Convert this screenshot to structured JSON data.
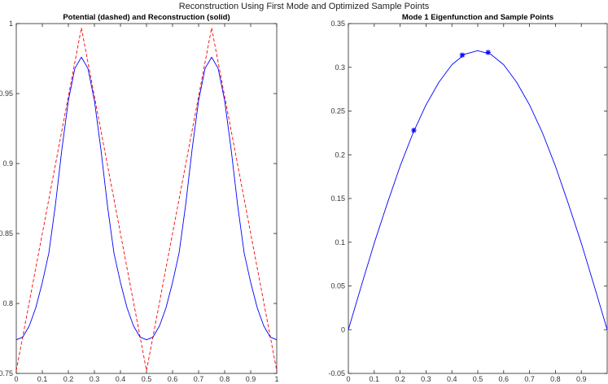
{
  "figure": {
    "title": "Reconstruction Using First Mode and Optimized Sample Points"
  },
  "chart_data": [
    {
      "type": "line",
      "title": "Potential (dashed) and Reconstruction (solid)",
      "xlabel": "",
      "ylabel": "",
      "xlim": [
        0,
        1
      ],
      "ylim": [
        0.75,
        1
      ],
      "xticks": [
        0,
        0.1,
        0.2,
        0.3,
        0.4,
        0.5,
        0.6,
        0.7,
        0.8,
        0.9,
        1
      ],
      "xticklabels": [
        "0",
        "0.1",
        "0.2",
        "0.3",
        "0.4",
        "0.5",
        "0.6",
        "0.7",
        "0.8",
        "0.9",
        "1"
      ],
      "yticks": [
        0.75,
        0.8,
        0.85,
        0.9,
        0.95,
        1
      ],
      "yticklabels": [
        "0.75",
        "0.8",
        "0.85",
        "0.9",
        "0.95",
        "1"
      ],
      "grid": false,
      "series": [
        {
          "style": "dashed",
          "color": "#ff0000",
          "x": [
            0,
            0.25,
            0.5,
            0.75,
            1
          ],
          "y": [
            0.752,
            0.997,
            0.752,
            0.997,
            0.752
          ]
        },
        {
          "style": "solid",
          "color": "#0000ff",
          "x": [
            0,
            0.025,
            0.05,
            0.075,
            0.1,
            0.125,
            0.15,
            0.175,
            0.2,
            0.225,
            0.25,
            0.275,
            0.3,
            0.325,
            0.35,
            0.375,
            0.4,
            0.425,
            0.45,
            0.475,
            0.5,
            0.525,
            0.55,
            0.575,
            0.6,
            0.625,
            0.65,
            0.675,
            0.7,
            0.725,
            0.75,
            0.775,
            0.8,
            0.825,
            0.85,
            0.875,
            0.9,
            0.925,
            0.95,
            0.975,
            1
          ],
          "y": [
            0.774,
            0.776,
            0.784,
            0.797,
            0.815,
            0.836,
            0.87,
            0.91,
            0.945,
            0.968,
            0.976,
            0.968,
            0.945,
            0.91,
            0.87,
            0.836,
            0.815,
            0.797,
            0.784,
            0.776,
            0.774,
            0.776,
            0.784,
            0.797,
            0.815,
            0.836,
            0.87,
            0.91,
            0.945,
            0.968,
            0.976,
            0.968,
            0.945,
            0.91,
            0.87,
            0.836,
            0.815,
            0.797,
            0.784,
            0.776,
            0.774
          ]
        }
      ]
    },
    {
      "type": "line",
      "title": "Mode 1 Eigenfunction and Sample Points",
      "xlabel": "",
      "ylabel": "",
      "xlim": [
        0,
        1
      ],
      "ylim": [
        -0.05,
        0.35
      ],
      "xticks": [
        0,
        0.1,
        0.2,
        0.3,
        0.4,
        0.5,
        0.6,
        0.7,
        0.8,
        0.9
      ],
      "xticklabels": [
        "0",
        "0.1",
        "0.2",
        "0.3",
        "0.4",
        "0.5",
        "0.6",
        "0.7",
        "0.8",
        "0.9"
      ],
      "yticks": [
        -0.05,
        0,
        0.05,
        0.1,
        0.15,
        0.2,
        0.25,
        0.3,
        0.35
      ],
      "yticklabels": [
        "-0.05",
        "0",
        "0.05",
        "0.1",
        "0.15",
        "0.2",
        "0.25",
        "0.3",
        "0.35"
      ],
      "grid": false,
      "series": [
        {
          "style": "solid",
          "color": "#0000ff",
          "x": [
            0,
            0.05,
            0.1,
            0.15,
            0.2,
            0.25,
            0.3,
            0.35,
            0.4,
            0.45,
            0.5,
            0.55,
            0.6,
            0.65,
            0.7,
            0.75,
            0.8,
            0.85,
            0.9,
            0.95,
            1
          ],
          "y": [
            0,
            0.05,
            0.099,
            0.144,
            0.187,
            0.225,
            0.257,
            0.283,
            0.303,
            0.315,
            0.319,
            0.315,
            0.303,
            0.283,
            0.257,
            0.225,
            0.187,
            0.144,
            0.099,
            0.05,
            0
          ]
        },
        {
          "style": "markers",
          "marker": "asterisk",
          "color": "#0000ff",
          "x": [
            0.253,
            0.44,
            0.54
          ],
          "y": [
            0.228,
            0.314,
            0.317
          ]
        }
      ]
    }
  ]
}
